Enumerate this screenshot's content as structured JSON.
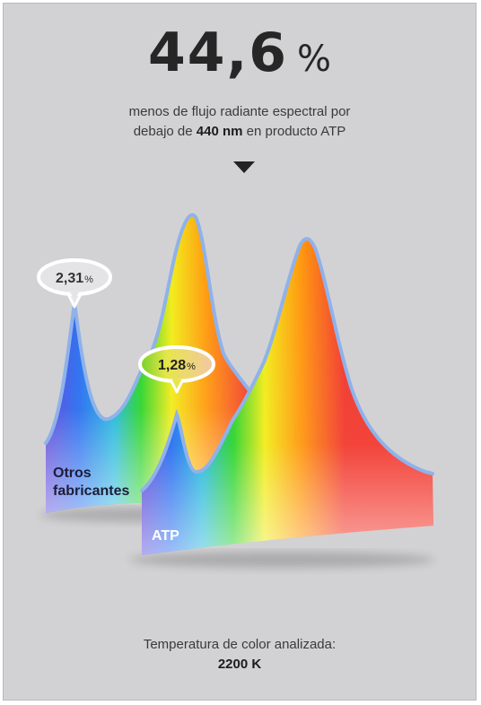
{
  "headline": {
    "value": "44,6",
    "unit": "%"
  },
  "subtitle": {
    "line1": "menos de flujo radiante espectral por",
    "line2_prefix": "debajo de",
    "line2_bold": "440 nm",
    "line2_suffix": "en producto ATP"
  },
  "footer": {
    "label": "Temperatura de color analizada:",
    "value": "2200 K"
  },
  "chart_data": {
    "type": "area",
    "title": "",
    "series": [
      {
        "name": "Otros fabricantes",
        "name_lines": [
          "Otros",
          "fabricantes"
        ],
        "callout": {
          "value": "2,31",
          "unit": "%"
        }
      },
      {
        "name": "ATP",
        "name_lines": [
          "ATP"
        ],
        "callout": {
          "value": "1,28",
          "unit": "%"
        }
      }
    ],
    "colors": {
      "violet": "#5f45d8",
      "blue": "#2a6ff0",
      "cyan": "#22b8dc",
      "green": "#2ed42e",
      "yellow": "#f2ec1a",
      "orange": "#ff9a10",
      "red": "#f23a30",
      "outline": "#8fb2ea"
    }
  }
}
